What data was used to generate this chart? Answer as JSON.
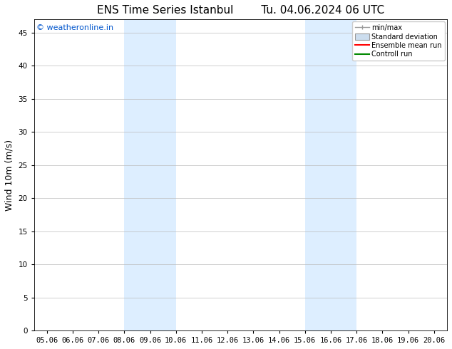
{
  "title_left": "ENS Time Series Istanbul",
  "title_right": "Tu. 04.06.2024 06 UTC",
  "ylabel": "Wind 10m (m/s)",
  "watermark": "© weatheronline.in",
  "watermark_color": "#0055cc",
  "ylim": [
    0,
    47
  ],
  "yticks": [
    0,
    5,
    10,
    15,
    20,
    25,
    30,
    35,
    40,
    45
  ],
  "x_labels": [
    "05.06",
    "06.06",
    "07.06",
    "08.06",
    "09.06",
    "10.06",
    "11.06",
    "12.06",
    "13.06",
    "14.06",
    "15.06",
    "16.06",
    "17.06",
    "18.06",
    "19.06",
    "20.06"
  ],
  "x_values": [
    0,
    1,
    2,
    3,
    4,
    5,
    6,
    7,
    8,
    9,
    10,
    11,
    12,
    13,
    14,
    15
  ],
  "shaded_bands": [
    {
      "xmin": 3.0,
      "xmax": 5.0,
      "color": "#ddeeff"
    },
    {
      "xmin": 10.0,
      "xmax": 12.0,
      "color": "#ddeeff"
    }
  ],
  "legend_items": [
    {
      "label": "min/max",
      "type": "minmax"
    },
    {
      "label": "Standard deviation",
      "type": "stdev"
    },
    {
      "label": "Ensemble mean run",
      "type": "line",
      "color": "#ff0000"
    },
    {
      "label": "Controll run",
      "type": "line",
      "color": "#008800"
    }
  ],
  "minmax_color": "#999999",
  "stdev_color": "#ccddee",
  "background_color": "#ffffff",
  "grid_color": "#bbbbbb",
  "title_fontsize": 11,
  "tick_fontsize": 7.5,
  "ylabel_fontsize": 9,
  "watermark_fontsize": 8
}
